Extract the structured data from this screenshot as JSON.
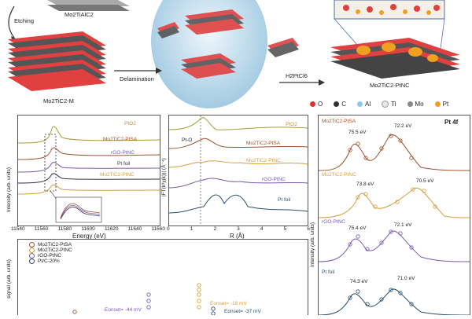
{
  "schematic": {
    "labels": {
      "top_left_material": "Mo2TiAlC2",
      "etching": "Etching",
      "etched_material": "Mo2TiC2-M",
      "delamination": "Delamination",
      "reagent": "H2PtCl6",
      "product": "Mo2TiC2-PtNC"
    },
    "legend": [
      {
        "symbol": "O",
        "color": "#e03030"
      },
      {
        "symbol": "C",
        "color": "#333333"
      },
      {
        "symbol": "Al",
        "color": "#8ec8e8"
      },
      {
        "symbol": "Ti",
        "color": "#e8e8e8"
      },
      {
        "symbol": "Mo",
        "color": "#888888"
      },
      {
        "symbol": "Pt",
        "color": "#f0a020"
      }
    ]
  },
  "xanes": {
    "series": [
      {
        "name": "PtO2",
        "color": "#b0983a"
      },
      {
        "name": "Mo2TiC2-PtSA",
        "color": "#a0522d"
      },
      {
        "name": "rGO-PtNC",
        "color": "#7a5cae"
      },
      {
        "name": "Pt foil",
        "color": "#333355"
      },
      {
        "name": "Mo2TiC2-PtNC",
        "color": "#d4a040"
      }
    ],
    "xlabel": "Energy (eV)",
    "ylabel": "Intensity (arb. units)",
    "xticks": [
      "11540",
      "11560",
      "11580",
      "11600",
      "11620",
      "11640",
      "11660"
    ],
    "inset_ylabel": "Intensity (arb. units)",
    "inset_xlabel": "Energy (eV)"
  },
  "exafs": {
    "series": [
      {
        "name": "PtO2",
        "color": "#b0983a"
      },
      {
        "name": "Mo2TiC2-PtSA",
        "color": "#a0522d"
      },
      {
        "name": "Mo2TiC2-PtNC",
        "color": "#d4a040"
      },
      {
        "name": "rGO-PtNC",
        "color": "#7a5cae"
      },
      {
        "name": "Pt foil",
        "color": "#2a4f6f"
      }
    ],
    "annotation": "Pt-O",
    "xlabel": "R (Å)",
    "ylabel": "|FT(k³χ(k))| (Å⁻⁴)",
    "xticks": [
      "0",
      "1",
      "2",
      "3",
      "4",
      "5",
      "6"
    ]
  },
  "xps": {
    "title": "Pt 4f",
    "ylabel": "Intensity (arb. units)",
    "series": [
      {
        "name": "Mo2TiC2-PtSA",
        "color": "#a0522d",
        "peaks": [
          "75.5 eV",
          "72.2 eV"
        ]
      },
      {
        "name": "Mo2TiC2-PtNC",
        "color": "#d4a040",
        "peaks": [
          "73.8 eV",
          "70.5 eV"
        ]
      },
      {
        "name": "rGO-PtNC",
        "color": "#7a5cae",
        "peaks": [
          "75.4 eV",
          "72.1 eV"
        ]
      },
      {
        "name": "Pt foil",
        "color": "#2a4f6f",
        "peaks": [
          "74.3 eV",
          "71.0 eV"
        ]
      }
    ]
  },
  "bottom": {
    "ylabel": "signal (arb. units)",
    "legend": [
      {
        "name": "Mo2TiC2-PtSA",
        "color": "#a0522d"
      },
      {
        "name": "Mo2TiC2-PtNC",
        "color": "#d4a040"
      },
      {
        "name": "rGO-PtNC",
        "color": "#7a5cae"
      },
      {
        "name": "Pt/C-20%",
        "color": "#2a4f6f"
      }
    ],
    "annotations": [
      "Eonset= -18 mV",
      "Eonset= -44 mV",
      "Eonset= -37 mV"
    ]
  }
}
